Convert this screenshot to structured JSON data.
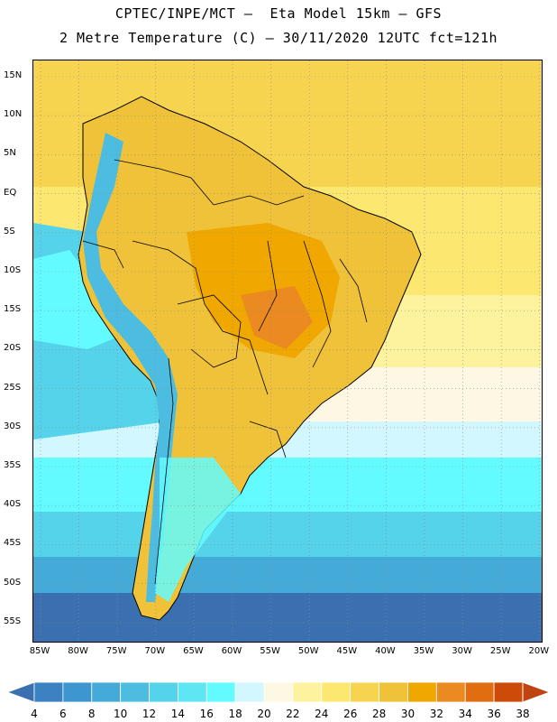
{
  "header": {
    "line1": "CPTEC/INPE/MCT –  Eta Model 15km – GFS",
    "line2": "2 Metre Temperature (C) – 30/11/2020 12UTC fct=121h"
  },
  "map": {
    "lat_labels": [
      "15N",
      "10N",
      "5N",
      "EQ",
      "5S",
      "10S",
      "15S",
      "20S",
      "25S",
      "30S",
      "35S",
      "40S",
      "45S",
      "50S",
      "55S"
    ],
    "lon_labels": [
      "85W",
      "80W",
      "75W",
      "70W",
      "65W",
      "60W",
      "55W",
      "50W",
      "45W",
      "40W",
      "35W",
      "30W",
      "25W",
      "20W"
    ]
  },
  "legend": {
    "labels": [
      "4",
      "6",
      "8",
      "10",
      "12",
      "14",
      "16",
      "18",
      "20",
      "22",
      "24",
      "26",
      "28",
      "30",
      "32",
      "34",
      "36",
      "38"
    ],
    "colors": [
      "#3a6fb0",
      "#3a82c2",
      "#3d96cf",
      "#44aad8",
      "#4cbde0",
      "#55d3ea",
      "#5fe6f3",
      "#63fbff",
      "#d2f7ff",
      "#fdf8e4",
      "#fdf39e",
      "#fce770",
      "#f6d44f",
      "#f0c23a",
      "#f0a800",
      "#ea8a20",
      "#e06d10",
      "#cc4b08",
      "#bf4410"
    ]
  }
}
